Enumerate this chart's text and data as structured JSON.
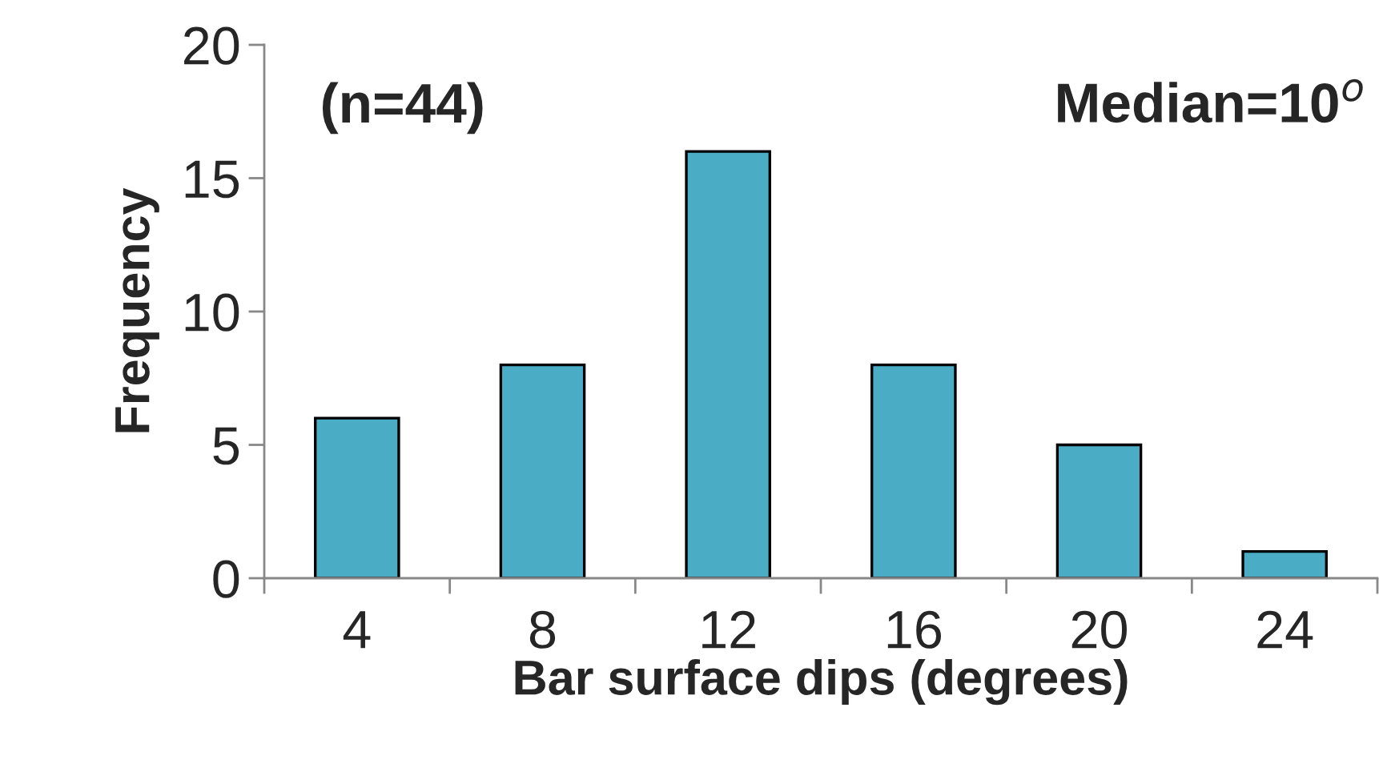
{
  "chart_data": {
    "type": "bar",
    "xlabel": "Bar surface dips (degrees)",
    "ylabel": "Frequency",
    "categories": [
      "4",
      "8",
      "12",
      "16",
      "20",
      "24"
    ],
    "values": [
      6,
      8,
      16,
      8,
      5,
      1
    ],
    "color": "#4bacc6",
    "ylim": [
      0,
      20
    ],
    "yticks": [
      0,
      5,
      10,
      15,
      20
    ],
    "grid": false,
    "legend": false,
    "annotations": [
      "(n=44)",
      "Median=10$^{o}$"
    ]
  }
}
